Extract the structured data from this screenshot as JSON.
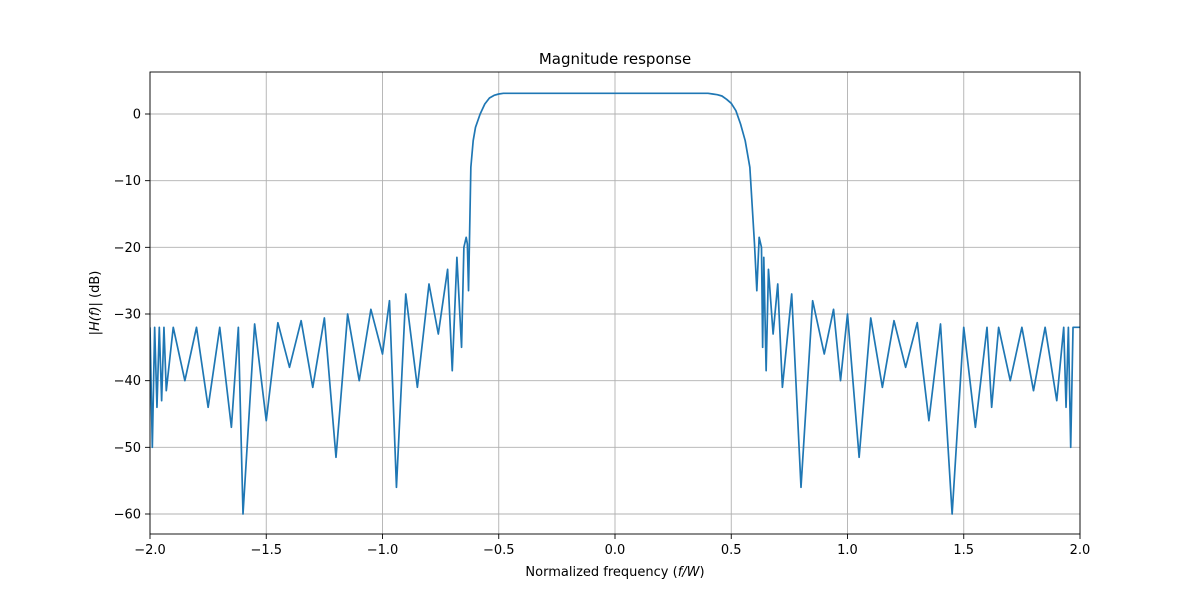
{
  "chart_data": {
    "type": "line",
    "title": "Magnitude response",
    "xlabel": {
      "prefix": "Normalized frequency (",
      "italic": "f/W",
      "suffix": ")"
    },
    "ylabel": {
      "prefix": "|",
      "italic": "H(f)",
      "suffix": "| (dB)"
    },
    "xlim": [
      -2.0,
      2.0
    ],
    "ylim": [
      -63.0,
      6.3
    ],
    "grid": true,
    "xticks": [
      {
        "value": -2.0,
        "label": "−2.0"
      },
      {
        "value": -1.5,
        "label": "−1.5"
      },
      {
        "value": -1.0,
        "label": "−1.0"
      },
      {
        "value": -0.5,
        "label": "−0.5"
      },
      {
        "value": 0.0,
        "label": "0.0"
      },
      {
        "value": 0.5,
        "label": "0.5"
      },
      {
        "value": 1.0,
        "label": "1.0"
      },
      {
        "value": 1.5,
        "label": "1.5"
      },
      {
        "value": 2.0,
        "label": "2.0"
      }
    ],
    "yticks": [
      {
        "value": 0,
        "label": "0"
      },
      {
        "value": -10,
        "label": "−10"
      },
      {
        "value": -20,
        "label": "−20"
      },
      {
        "value": -30,
        "label": "−30"
      },
      {
        "value": -40,
        "label": "−40"
      },
      {
        "value": -50,
        "label": "−50"
      },
      {
        "value": -60,
        "label": "−60"
      }
    ],
    "series": [
      {
        "color": "#1f77b4",
        "x": [
          -2.0,
          -1.99,
          -1.98,
          -1.97,
          -1.96,
          -1.95,
          -1.94,
          -1.93,
          -1.9,
          -1.85,
          -1.8,
          -1.75,
          -1.7,
          -1.65,
          -1.62,
          -1.6,
          -1.55,
          -1.5,
          -1.45,
          -1.4,
          -1.35,
          -1.3,
          -1.25,
          -1.2,
          -1.15,
          -1.1,
          -1.05,
          -1.0,
          -0.97,
          -0.94,
          -0.9,
          -0.85,
          -0.8,
          -0.76,
          -0.72,
          -0.7,
          -0.68,
          -0.66,
          -0.65,
          -0.64,
          -0.635,
          -0.63,
          -0.62,
          -0.61,
          -0.6,
          -0.58,
          -0.56,
          -0.54,
          -0.52,
          -0.5,
          -0.48,
          -0.46,
          -0.44,
          -0.42,
          -0.4,
          -0.35,
          -0.3,
          -0.2,
          0.0,
          0.2,
          0.3,
          0.35,
          0.4,
          0.42,
          0.44,
          0.46,
          0.48,
          0.5,
          0.52,
          0.54,
          0.56,
          0.58,
          0.6,
          0.61,
          0.62,
          0.63,
          0.635,
          0.64,
          0.65,
          0.66,
          0.68,
          0.7,
          0.72,
          0.76,
          0.8,
          0.85,
          0.9,
          0.94,
          0.97,
          1.0,
          1.05,
          1.1,
          1.15,
          1.2,
          1.25,
          1.3,
          1.35,
          1.4,
          1.45,
          1.5,
          1.55,
          1.6,
          1.62,
          1.65,
          1.7,
          1.75,
          1.8,
          1.85,
          1.9,
          1.93,
          1.94,
          1.95,
          1.96,
          1.97,
          1.98,
          1.99,
          2.0
        ],
        "y": [
          -32.0,
          -50.0,
          -32.0,
          -44.0,
          -32.0,
          -43.0,
          -32.0,
          -41.5,
          -32.0,
          -40.0,
          -32.0,
          -44.0,
          -32.0,
          -47.0,
          -32.0,
          -60.0,
          -31.5,
          -46.0,
          -31.3,
          -38.0,
          -31.0,
          -41.0,
          -30.6,
          -51.5,
          -30.0,
          -40.0,
          -29.3,
          -36.0,
          -28.0,
          -56.0,
          -27.0,
          -41.0,
          -25.5,
          -33.0,
          -23.3,
          -38.5,
          -21.5,
          -35.0,
          -20.0,
          -18.5,
          -19.5,
          -26.5,
          -8.0,
          -4.0,
          -2.0,
          0.0,
          1.5,
          2.4,
          2.8,
          3.0,
          3.1,
          3.1,
          3.1,
          3.1,
          3.1,
          3.1,
          3.1,
          3.1,
          3.1,
          3.1,
          3.1,
          3.1,
          3.1,
          3.0,
          2.9,
          2.7,
          2.2,
          1.6,
          0.5,
          -1.5,
          -4.0,
          -8.0,
          -19.5,
          -26.5,
          -18.5,
          -20.0,
          -35.0,
          -21.5,
          -38.5,
          -23.3,
          -33.0,
          -25.5,
          -41.0,
          -27.0,
          -56.0,
          -28.0,
          -36.0,
          -29.3,
          -40.0,
          -30.0,
          -51.5,
          -30.6,
          -41.0,
          -31.0,
          -38.0,
          -31.3,
          -46.0,
          -31.5,
          -60.0,
          -32.0,
          -47.0,
          -32.0,
          -44.0,
          -32.0,
          -40.0,
          -32.0,
          -41.5,
          -32.0,
          -43.0,
          -32.0,
          -44.0,
          -32.0,
          -50.0,
          -32.0,
          -32.0,
          -32.0,
          -32.0
        ]
      }
    ]
  }
}
